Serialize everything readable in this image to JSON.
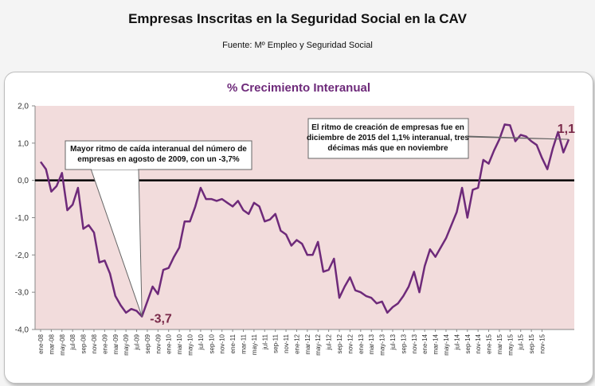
{
  "header": {
    "title": "Empresas Inscritas en la Seguridad Social en la CAV",
    "source": "Fuente: Mº Empleo y Seguridad Social"
  },
  "colors": {
    "line": "#6e2a7a",
    "plot_background": "#f2dcdc",
    "title": "#6e2a7a",
    "value_label": "#7a2a4a"
  },
  "chart_data": {
    "type": "line",
    "title": "% Crecimiento Interanual",
    "ylim": [
      -4.0,
      2.0
    ],
    "y_ticks": [
      "2,0",
      "1,0",
      "0,0",
      "-1,0",
      "-2,0",
      "-3,0",
      "-4,0"
    ],
    "x_tick_labels": [
      "ene-08",
      "mar-08",
      "may-08",
      "jul-08",
      "sep-08",
      "nov-08",
      "ene-09",
      "mar-09",
      "may-09",
      "jul-09",
      "sep-09",
      "nov-09",
      "ene-10",
      "mar-10",
      "may-10",
      "jul-10",
      "sep-10",
      "nov-10",
      "ene-11",
      "mar-11",
      "may-11",
      "jul-11",
      "sep-11",
      "nov-11",
      "ene-12",
      "mar-12",
      "may-12",
      "jul-12",
      "sep-12",
      "nov-12",
      "ene-13",
      "mar-13",
      "may-13",
      "jul-13",
      "sep-13",
      "nov-13",
      "ene-14",
      "mar-14",
      "may-14",
      "jul-14",
      "sep-14",
      "nov-14",
      "ene-15",
      "mar-15",
      "may-15",
      "jul-15",
      "sep-15",
      "nov-15"
    ],
    "series": [
      {
        "values": [
          0.5,
          0.3,
          -0.3,
          -0.15,
          0.2,
          -0.8,
          -0.65,
          -0.2,
          -1.3,
          -1.2,
          -1.4,
          -2.2,
          -2.15,
          -2.5,
          -3.1,
          -3.35,
          -3.55,
          -3.45,
          -3.5,
          -3.65,
          -3.25,
          -2.85,
          -3.05,
          -2.4,
          -2.35,
          -2.05,
          -1.8,
          -1.1,
          -1.1,
          -0.7,
          -0.2,
          -0.5,
          -0.5,
          -0.55,
          -0.5,
          -0.6,
          -0.7,
          -0.55,
          -0.8,
          -0.9,
          -0.6,
          -0.7,
          -1.1,
          -1.05,
          -0.9,
          -1.35,
          -1.45,
          -1.75,
          -1.6,
          -1.7,
          -2.0,
          -2.0,
          -1.65,
          -2.45,
          -2.4,
          -2.1,
          -3.15,
          -2.85,
          -2.6,
          -2.95,
          -3.0,
          -3.1,
          -3.15,
          -3.3,
          -3.25,
          -3.55,
          -3.4,
          -3.3,
          -3.1,
          -2.85,
          -2.45,
          -3.0,
          -2.3,
          -1.85,
          -2.05,
          -1.8,
          -1.55,
          -1.2,
          -0.85,
          -0.2,
          -1.0,
          -0.25,
          -0.2,
          0.55,
          0.45,
          0.8,
          1.1,
          1.5,
          1.48,
          1.05,
          1.22,
          1.18,
          1.05,
          0.95,
          0.6,
          0.3,
          0.85,
          1.3,
          0.75,
          1.1
        ]
      }
    ],
    "annotations": [
      {
        "text": "-3,7"
      },
      {
        "text": "1,1"
      },
      {
        "text": "Mayor ritmo de caída interanual del número de empresas en agosto de 2009, con un -3,7%"
      },
      {
        "text": "El ritmo de creación de empresas fue en diciembre de 2015 del 1,1% interanual, tres décimas más que en noviembre"
      }
    ],
    "grid": false,
    "legend": "none"
  }
}
